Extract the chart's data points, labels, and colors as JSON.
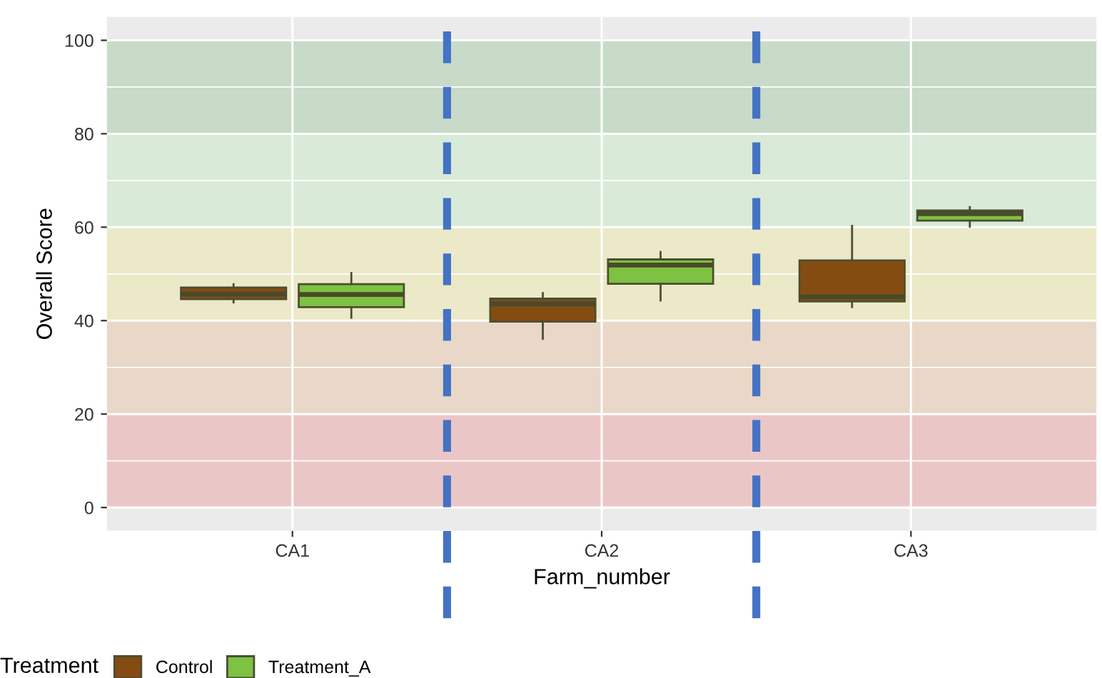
{
  "chart_data": {
    "type": "box",
    "xlabel": "Farm_number",
    "ylabel": "Overall Score",
    "legend_title": "Treatment",
    "categories": [
      "CA1",
      "CA2",
      "CA3"
    ],
    "series": [
      {
        "name": "Control",
        "color": "#854c12",
        "boxes": [
          {
            "low": 43.9,
            "q1": 44.6,
            "median": 45.7,
            "q3": 47.1,
            "high": 47.8
          },
          {
            "low": 36.1,
            "q1": 39.8,
            "median": 43.6,
            "q3": 44.7,
            "high": 45.9
          },
          {
            "low": 42.9,
            "q1": 44.1,
            "median": 45.1,
            "q3": 52.9,
            "high": 60.3
          }
        ]
      },
      {
        "name": "Treatment_A",
        "color": "#7dc242",
        "boxes": [
          {
            "low": 40.6,
            "q1": 42.9,
            "median": 45.6,
            "q3": 47.8,
            "high": 50.2
          },
          {
            "low": 44.3,
            "q1": 47.9,
            "median": 51.9,
            "q3": 53.1,
            "high": 54.7
          },
          {
            "low": 60.1,
            "q1": 61.4,
            "median": 62.9,
            "q3": 63.6,
            "high": 64.3
          }
        ]
      }
    ],
    "ylim": [
      -5,
      105
    ],
    "yticks": [
      0,
      20,
      40,
      60,
      80,
      100
    ],
    "grid": true,
    "legend": "bottom",
    "bands": [
      {
        "axis": "y",
        "from": 0,
        "to": 20,
        "color": "#ebc6c6"
      },
      {
        "axis": "y",
        "from": 20,
        "to": 40,
        "color": "#e9d8c7"
      },
      {
        "axis": "y",
        "from": 40,
        "to": 60,
        "color": "#ebe9c7"
      },
      {
        "axis": "y",
        "from": 60,
        "to": 80,
        "color": "#d9ead8"
      },
      {
        "axis": "y",
        "from": 80,
        "to": 100,
        "color": "#c8dac8"
      }
    ]
  }
}
